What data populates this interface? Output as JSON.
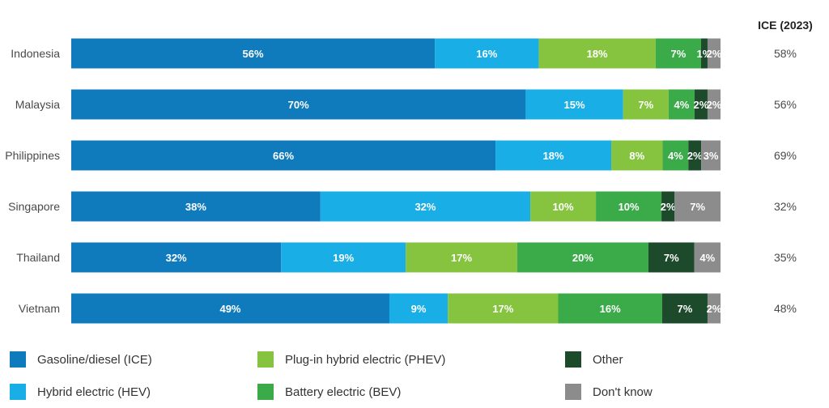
{
  "chart_data": {
    "type": "bar",
    "orientation": "horizontal",
    "stacked": true,
    "categories": [
      "Indonesia",
      "Malaysia",
      "Philippines",
      "Singapore",
      "Thailand",
      "Vietnam"
    ],
    "series": [
      {
        "name": "Gasoline/diesel (ICE)",
        "color": "#0f7bbd",
        "values": [
          56,
          70,
          66,
          38,
          32,
          49
        ]
      },
      {
        "name": "Hybrid electric (HEV)",
        "color": "#1aaee6",
        "values": [
          16,
          15,
          18,
          32,
          19,
          9
        ]
      },
      {
        "name": "Plug-in hybrid electric (PHEV)",
        "color": "#86c440",
        "values": [
          18,
          7,
          8,
          10,
          17,
          17
        ]
      },
      {
        "name": "Battery electric (BEV)",
        "color": "#3aab48",
        "values": [
          7,
          4,
          4,
          10,
          20,
          16
        ]
      },
      {
        "name": "Other",
        "color": "#1c4a2a",
        "values": [
          1,
          2,
          2,
          2,
          7,
          7
        ]
      },
      {
        "name": "Don't know",
        "color": "#8c8c8c",
        "values": [
          2,
          2,
          3,
          7,
          4,
          2
        ]
      }
    ],
    "value_suffix": "%",
    "reference_column": {
      "header": "ICE (2023)",
      "values": [
        "58%",
        "56%",
        "69%",
        "32%",
        "35%",
        "48%"
      ]
    },
    "legend_position": "bottom",
    "grid": false
  }
}
